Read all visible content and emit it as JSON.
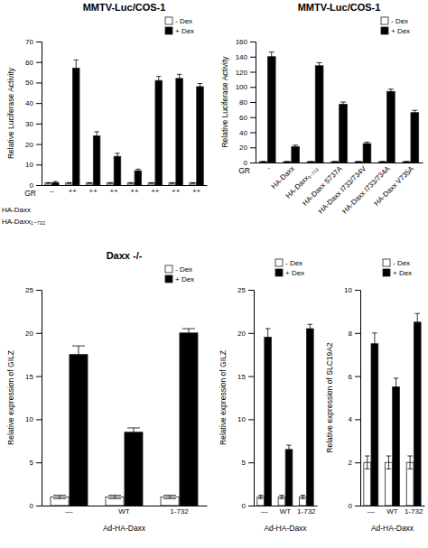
{
  "chart_data": [
    {
      "type": "bar",
      "title": "MMTV-Luc/COS-1",
      "ylabel": "Relative Luciferase Activity",
      "xlabel": "GR",
      "categories": [
        "--",
        "++",
        "++",
        "++",
        "++",
        "++",
        "++",
        "++"
      ],
      "series": [
        {
          "name": "- Dex",
          "color": "#ffffff",
          "values": [
            1,
            1,
            1,
            1,
            1,
            1,
            1,
            1
          ],
          "errors": [
            0.2,
            0.2,
            0.2,
            0.2,
            0.2,
            0.2,
            0.2,
            0.2
          ]
        },
        {
          "name": "+ Dex",
          "color": "#000000",
          "values": [
            1.2,
            57,
            24,
            14,
            7,
            51,
            52,
            48
          ],
          "errors": [
            0.5,
            4,
            2,
            1.5,
            0.8,
            2,
            2,
            1.5
          ]
        }
      ],
      "ylim": [
        0,
        70
      ],
      "yticks": [
        0,
        10,
        20,
        30,
        40,
        50,
        60,
        70
      ],
      "legend": "upper right",
      "annotations": [
        "HA-Daxx",
        "HA-Daxx₁₋₇₃₂"
      ]
    },
    {
      "type": "bar",
      "title": "MMTV-Luc/COS-1",
      "ylabel": "Relative Luciferase Activity",
      "xlabel": "GR",
      "categories": [
        "-",
        "HA-Daxx",
        "HA-Daxx₁₋₇₃₂",
        "HA-Daxx S737A",
        "HA-Daxx I733/734V",
        "HA-Daxx I733/734A",
        "HA-Daxx V735A"
      ],
      "series": [
        {
          "name": "- Dex",
          "color": "#ffffff",
          "values": [
            1,
            1,
            1,
            1,
            1,
            1,
            1
          ],
          "errors": [
            0.3,
            0.3,
            0.3,
            0.3,
            0.3,
            0.3,
            0.3
          ]
        },
        {
          "name": "+ Dex",
          "color": "#000000",
          "values": [
            140,
            21,
            128,
            77,
            25,
            94,
            66
          ],
          "errors": [
            6,
            2,
            4,
            3,
            2,
            3,
            3
          ]
        }
      ],
      "ylim": [
        0,
        160
      ],
      "yticks": [
        0,
        20,
        40,
        60,
        80,
        100,
        120,
        140,
        160
      ],
      "legend": "upper right"
    },
    {
      "type": "bar",
      "title": "Daxx -/-",
      "ylabel": "Relative expression of GILZ",
      "xlabel": "Ad-HA-Daxx",
      "categories": [
        "—",
        "WT",
        "1-732"
      ],
      "series": [
        {
          "name": "- Dex",
          "color": "#ffffff",
          "values": [
            1,
            1,
            1
          ],
          "errors": [
            0.2,
            0.2,
            0.2
          ]
        },
        {
          "name": "+ Dex",
          "color": "#000000",
          "values": [
            17.5,
            8.5,
            20
          ],
          "errors": [
            1,
            0.5,
            0.5
          ]
        }
      ],
      "ylim": [
        0,
        25
      ],
      "yticks": [
        0,
        5,
        10,
        15,
        20,
        25
      ],
      "legend": "upper right"
    },
    {
      "type": "bar",
      "ylabel": "Relative expression of GILZ",
      "xlabel": "Ad-HA-Daxx",
      "categories": [
        "—",
        "WT",
        "1-732"
      ],
      "series": [
        {
          "name": "- Dex",
          "color": "#ffffff",
          "values": [
            1,
            1,
            1
          ],
          "errors": [
            0.2,
            0.2,
            0.2
          ]
        },
        {
          "name": "+ Dex",
          "color": "#000000",
          "values": [
            19.5,
            6.5,
            20.5
          ],
          "errors": [
            1,
            0.5,
            0.5
          ]
        }
      ],
      "ylim": [
        0,
        25
      ],
      "yticks": [
        0,
        5,
        10,
        15,
        20,
        25
      ],
      "legend": "upper right"
    },
    {
      "type": "bar",
      "ylabel": "Relative expression of SLC19A2",
      "xlabel": "Ad-HA-Daxx",
      "categories": [
        "—",
        "WT",
        "1-732"
      ],
      "series": [
        {
          "name": "- Dex",
          "color": "#ffffff",
          "values": [
            2,
            2,
            2
          ],
          "errors": [
            0.3,
            0.3,
            0.3
          ]
        },
        {
          "name": "+ Dex",
          "color": "#000000",
          "values": [
            7.5,
            5.5,
            8.5
          ],
          "errors": [
            0.5,
            0.4,
            0.4
          ]
        }
      ],
      "ylim": [
        0,
        10
      ],
      "yticks": [
        0,
        2,
        4,
        6,
        8,
        10
      ],
      "legend": "upper right"
    }
  ]
}
